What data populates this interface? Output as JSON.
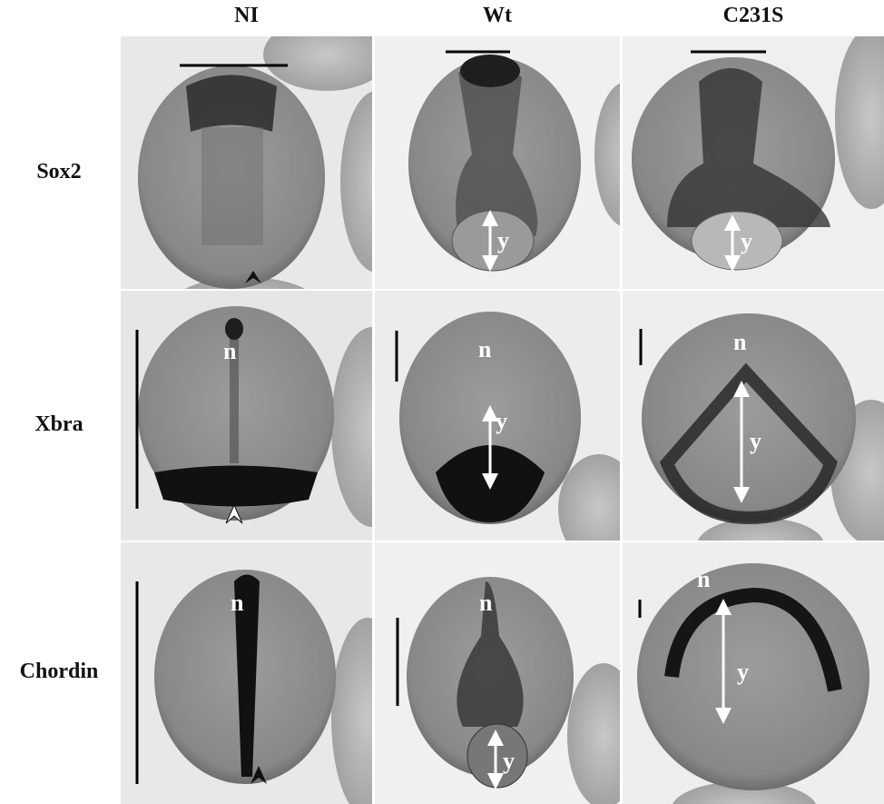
{
  "columns": [
    "NI",
    "Wt",
    "C231S"
  ],
  "rows": [
    "Sox2",
    "Xbra",
    "Chordin"
  ],
  "panel_labels": {
    "notochord": "n",
    "yolk": "y"
  },
  "colors": {
    "background": "#ffffff",
    "embryo": "#8e8e8e",
    "stain": "#1e1e1e",
    "annotation": "#ffffff",
    "scale_bar": "#000000"
  }
}
